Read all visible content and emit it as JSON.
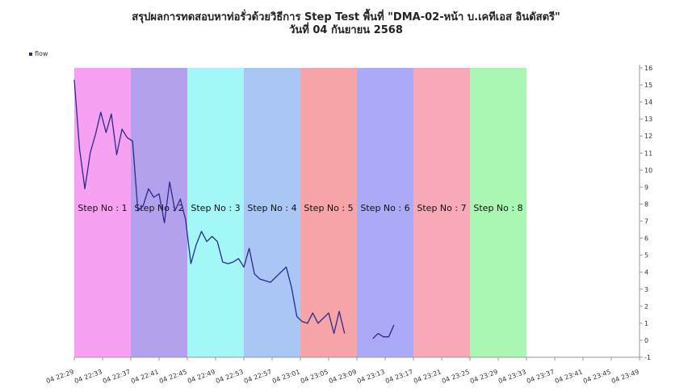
{
  "chart_data": {
    "type": "line",
    "title": "สรุปผลการทดสอบหาท่อรั่วด้วยวิธีการ Step Test พื้นที่ \"DMA-02-หน้า บ.เคทีเอส อินดัสตรี\"",
    "subtitle": "วันที่ 04 กันยายน 2568",
    "xlabel": "",
    "ylabel": "",
    "ylim": [
      -1,
      16
    ],
    "y_ticks": [
      -1,
      0,
      1,
      2,
      3,
      4,
      5,
      6,
      7,
      8,
      9,
      10,
      11,
      12,
      13,
      14,
      15,
      16
    ],
    "xlim": [
      "04 22:29",
      "04 23:49"
    ],
    "x_ticks": [
      "04 22:29",
      "04 22:33",
      "04 22:37",
      "04 22:41",
      "04 22:45",
      "04 22:49",
      "04 22:53",
      "04 22:57",
      "04 23:01",
      "04 23:05",
      "04 23:09",
      "04 23:13",
      "04 23:17",
      "04 23:21",
      "04 23:25",
      "04 23:29",
      "04 23:33",
      "04 23:37",
      "04 23:41",
      "04 23:45",
      "04 23:49"
    ],
    "grid": false,
    "legend": "top-left",
    "steps": [
      {
        "label": "Step No : 1",
        "start": "04 22:29",
        "end": "04 22:37",
        "color": "#f7a1f2"
      },
      {
        "label": "Step No : 2",
        "start": "04 22:37",
        "end": "04 22:45",
        "color": "#b3a1ed"
      },
      {
        "label": "Step No : 3",
        "start": "04 22:45",
        "end": "04 22:53",
        "color": "#a4f7f7"
      },
      {
        "label": "Step No : 4",
        "start": "04 22:53",
        "end": "04 23:01",
        "color": "#a9c6f5"
      },
      {
        "label": "Step No : 5",
        "start": "04 23:01",
        "end": "04 23:09",
        "color": "#f7a4a8"
      },
      {
        "label": "Step No : 6",
        "start": "04 23:09",
        "end": "04 23:17",
        "color": "#aaaaf7"
      },
      {
        "label": "Step No : 7",
        "start": "04 23:17",
        "end": "04 23:25",
        "color": "#f7a9b8"
      },
      {
        "label": "Step No : 8",
        "start": "04 23:25",
        "end": "04 23:33",
        "color": "#a9f7b3"
      }
    ],
    "series": [
      {
        "name": "flow",
        "color": "#2a2a8c",
        "segments": [
          [
            [
              "04 22:29:00",
              15.3
            ],
            [
              "04 22:29:45",
              11.2
            ],
            [
              "04 22:30:30",
              8.9
            ],
            [
              "04 22:31:15",
              11.0
            ],
            [
              "04 22:32:00",
              12.1
            ],
            [
              "04 22:32:45",
              13.4
            ],
            [
              "04 22:33:30",
              12.2
            ],
            [
              "04 22:34:15",
              13.3
            ],
            [
              "04 22:35:00",
              10.9
            ],
            [
              "04 22:35:45",
              12.4
            ],
            [
              "04 22:36:30",
              11.9
            ],
            [
              "04 22:37:15",
              11.7
            ],
            [
              "04 22:38:00",
              7.6
            ],
            [
              "04 22:38:45",
              7.9
            ],
            [
              "04 22:39:30",
              8.9
            ],
            [
              "04 22:40:15",
              8.4
            ],
            [
              "04 22:41:00",
              8.6
            ],
            [
              "04 22:41:45",
              6.9
            ],
            [
              "04 22:42:30",
              9.3
            ],
            [
              "04 22:43:15",
              7.6
            ],
            [
              "04 22:44:00",
              8.3
            ],
            [
              "04 22:44:45",
              7.1
            ],
            [
              "04 22:45:30",
              4.5
            ],
            [
              "04 22:46:15",
              5.6
            ],
            [
              "04 22:47:00",
              6.4
            ],
            [
              "04 22:47:45",
              5.8
            ],
            [
              "04 22:48:30",
              6.1
            ],
            [
              "04 22:49:15",
              5.8
            ],
            [
              "04 22:50:00",
              4.6
            ],
            [
              "04 22:50:45",
              4.5
            ],
            [
              "04 22:51:30",
              4.6
            ],
            [
              "04 22:52:15",
              4.8
            ],
            [
              "04 22:53:00",
              4.3
            ],
            [
              "04 22:53:45",
              5.4
            ],
            [
              "04 22:54:30",
              3.9
            ],
            [
              "04 22:55:15",
              3.6
            ],
            [
              "04 22:56:00",
              3.5
            ],
            [
              "04 22:56:45",
              3.4
            ],
            [
              "04 22:57:30",
              3.7
            ],
            [
              "04 22:58:15",
              4.0
            ],
            [
              "04 22:59:00",
              4.3
            ],
            [
              "04 22:59:45",
              3.1
            ],
            [
              "04 23:00:30",
              1.4
            ],
            [
              "04 23:01:15",
              1.1
            ],
            [
              "04 23:02:00",
              1.0
            ],
            [
              "04 23:02:45",
              1.6
            ],
            [
              "04 23:03:30",
              1.0
            ],
            [
              "04 23:04:15",
              1.3
            ],
            [
              "04 23:05:00",
              1.6
            ],
            [
              "04 23:05:45",
              0.4
            ],
            [
              "04 23:06:30",
              1.7
            ],
            [
              "04 23:07:15",
              0.4
            ]
          ],
          [
            [
              "04 23:11:15",
              0.1
            ],
            [
              "04 23:12:00",
              0.4
            ],
            [
              "04 23:12:45",
              0.2
            ],
            [
              "04 23:13:30",
              0.2
            ],
            [
              "04 23:14:15",
              0.9
            ]
          ]
        ]
      }
    ]
  }
}
